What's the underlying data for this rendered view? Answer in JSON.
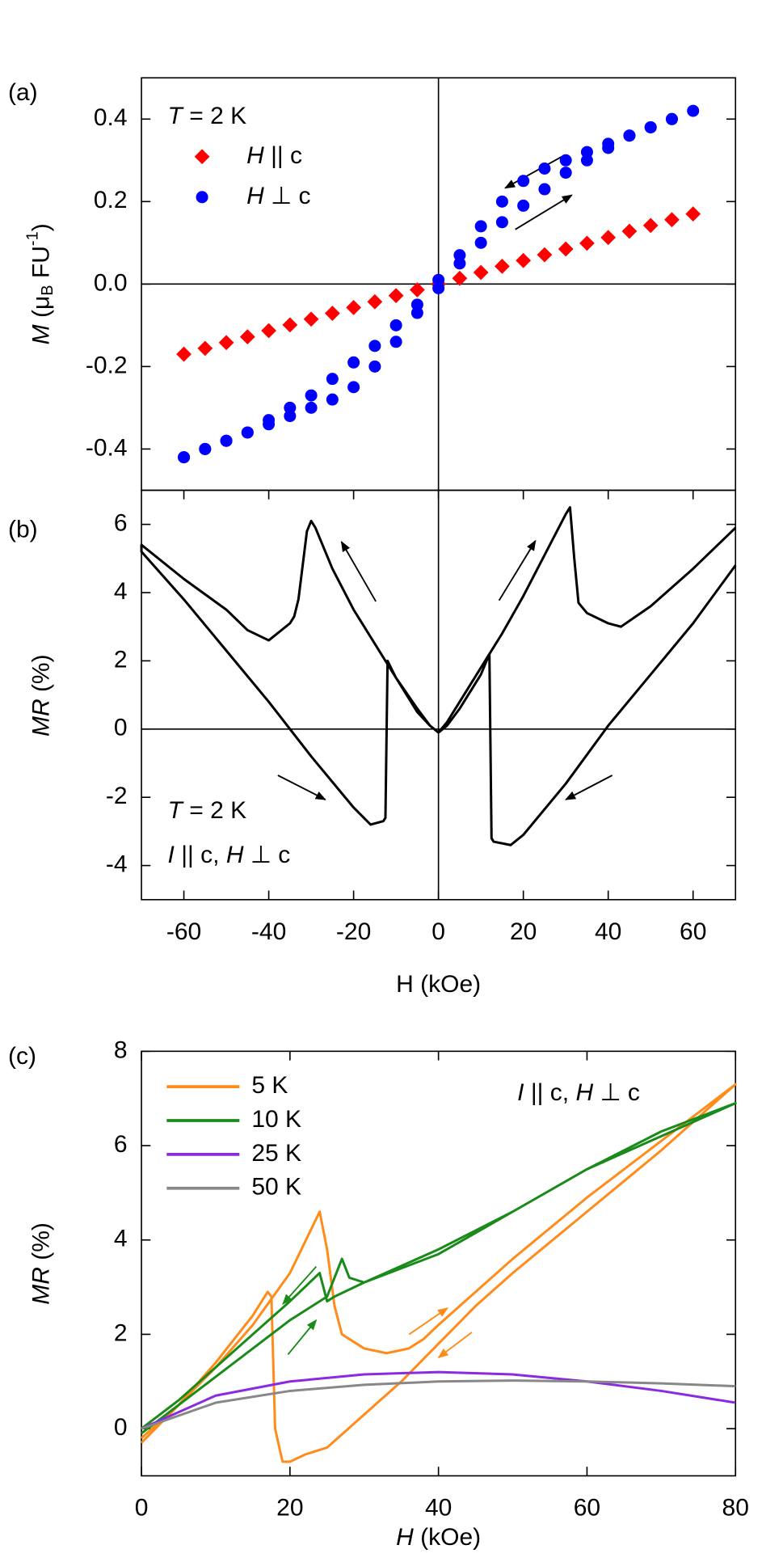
{
  "chart_data": [
    {
      "type": "scatter",
      "label": "(a)",
      "ylabel": [
        "M",
        " (μ",
        "B",
        " FU",
        "-1",
        ")"
      ],
      "xlim": [
        -70,
        70
      ],
      "ylim": [
        -0.5,
        0.5
      ],
      "yticks": [
        -0.4,
        -0.2,
        {
          "value": 0,
          "label": "0.0"
        },
        0.2,
        0.4
      ],
      "zero_lines": true,
      "legend": "upper left",
      "legend_title": [
        "T",
        " = 2 K"
      ],
      "series": [
        {
          "name": [
            "H",
            " || c"
          ],
          "color": "#ff0000",
          "marker": "diamond",
          "x": [
            -60,
            -55,
            -50,
            -45,
            -40,
            -35,
            -30,
            -25,
            -20,
            -15,
            -10,
            -5,
            0,
            5,
            10,
            15,
            20,
            25,
            30,
            35,
            40,
            45,
            50,
            55,
            60
          ],
          "values": [
            -0.17,
            -0.156,
            -0.142,
            -0.128,
            -0.113,
            -0.099,
            -0.085,
            -0.071,
            -0.057,
            -0.043,
            -0.028,
            -0.014,
            0,
            0.014,
            0.028,
            0.043,
            0.057,
            0.071,
            0.085,
            0.099,
            0.113,
            0.128,
            0.142,
            0.156,
            0.17
          ]
        },
        {
          "name": [
            "H",
            " ⊥ c"
          ],
          "color": "#0000ff",
          "marker": "circle",
          "x": [
            -60,
            -55,
            -50,
            -45,
            -40,
            -35,
            -30,
            -25,
            -20,
            -15,
            -10,
            -5,
            0,
            5,
            10,
            15,
            20,
            25,
            30,
            35,
            40,
            45,
            50,
            55,
            60,
            55,
            50,
            45,
            40,
            35,
            30,
            25,
            20,
            15,
            10,
            5,
            0,
            -5,
            -10,
            -15,
            -20,
            -25,
            -30,
            -35,
            -40,
            -45,
            -50,
            -55,
            -60
          ],
          "values": [
            -0.42,
            -0.4,
            -0.38,
            -0.36,
            -0.34,
            -0.32,
            -0.3,
            -0.28,
            -0.25,
            -0.2,
            -0.14,
            -0.07,
            -0.01,
            0.05,
            0.1,
            0.15,
            0.19,
            0.23,
            0.27,
            0.3,
            0.33,
            0.36,
            0.38,
            0.4,
            0.42,
            0.4,
            0.38,
            0.36,
            0.34,
            0.32,
            0.3,
            0.28,
            0.25,
            0.2,
            0.14,
            0.07,
            0.01,
            -0.05,
            -0.1,
            -0.15,
            -0.19,
            -0.23,
            -0.27,
            -0.3,
            -0.33,
            -0.36,
            -0.38,
            -0.4,
            -0.42
          ]
        }
      ]
    },
    {
      "type": "line",
      "label": "(b)",
      "ylabel": [
        "MR",
        " (%)"
      ],
      "xlabel": "H (kOe)",
      "xlim": [
        -70,
        70
      ],
      "ylim": [
        -5,
        7
      ],
      "xticks": [
        -60,
        -40,
        -20,
        0,
        20,
        40,
        60
      ],
      "yticks": [
        -4,
        -2,
        0,
        2,
        4,
        6
      ],
      "zero_lines": true,
      "annotations": [
        [
          "T",
          " = 2 K"
        ],
        [
          "I",
          " || c, ",
          "H",
          " ⊥ c"
        ]
      ],
      "series": [
        {
          "color": "#000000",
          "x": [
            70,
            60,
            50,
            40,
            30,
            20,
            17,
            13,
            12.5,
            12,
            10,
            8,
            5,
            2,
            0,
            -2,
            -5,
            -10,
            -15,
            -20,
            -25,
            -29,
            -30,
            -31,
            -32,
            -33,
            -34,
            -35,
            -40,
            -45,
            -50,
            -60,
            -70,
            -70,
            -60,
            -50,
            -40,
            -35,
            -30,
            -20,
            -16,
            -13,
            -12.5,
            -12,
            -10,
            -8,
            -5,
            -2,
            0,
            2,
            5,
            10,
            15,
            20,
            25,
            30,
            31,
            32,
            33,
            35,
            40,
            43,
            50,
            60,
            70
          ],
          "values": [
            4.8,
            3.1,
            1.6,
            0.1,
            -1.6,
            -3.1,
            -3.4,
            -3.3,
            -3.2,
            2.2,
            1.6,
            1.2,
            0.6,
            0.1,
            -0.1,
            0.1,
            0.6,
            1.5,
            2.5,
            3.5,
            4.7,
            5.9,
            6.1,
            5.8,
            4.8,
            3.8,
            3.3,
            3.1,
            2.6,
            2.9,
            3.5,
            4.4,
            5.4,
            5.2,
            3.8,
            2.3,
            0.8,
            0,
            -0.8,
            -2.3,
            -2.8,
            -2.7,
            -2.6,
            2.0,
            1.5,
            1.1,
            0.5,
            0.1,
            -0.1,
            0.2,
            0.8,
            1.8,
            2.8,
            3.9,
            5.1,
            6.3,
            6.5,
            5.0,
            3.7,
            3.4,
            3.1,
            3.0,
            3.6,
            4.7,
            5.9
          ]
        }
      ]
    },
    {
      "type": "line",
      "label": "(c)",
      "ylabel": [
        "MR",
        " (%)"
      ],
      "xlabel": [
        "H",
        " (kOe)"
      ],
      "xlim": [
        0,
        80
      ],
      "ylim": [
        -1,
        8
      ],
      "xticks": [
        0,
        20,
        40,
        60,
        80
      ],
      "yticks": [
        0,
        2,
        4,
        6,
        8
      ],
      "legend": "upper left",
      "annotations": [
        [
          "I",
          " || c, ",
          "H",
          " ⊥ c"
        ]
      ],
      "series": [
        {
          "name": "5 K",
          "color": "#ff8c1a",
          "x": [
            0,
            5,
            10,
            15,
            20,
            24,
            25,
            26,
            27,
            30,
            33,
            36,
            38,
            40,
            50,
            60,
            70,
            80,
            80,
            70,
            60,
            50,
            45,
            40,
            35,
            30,
            25,
            22,
            20,
            19,
            18,
            17.5,
            17,
            15,
            10,
            5,
            0
          ],
          "values": [
            -0.2,
            0.5,
            1.3,
            2.2,
            3.3,
            4.6,
            3.8,
            2.6,
            2.0,
            1.7,
            1.6,
            1.7,
            1.9,
            2.2,
            3.6,
            4.9,
            6.1,
            7.3,
            7.3,
            5.9,
            4.6,
            3.3,
            2.6,
            1.8,
            1.0,
            0.3,
            -0.4,
            -0.55,
            -0.7,
            -0.7,
            0,
            2.8,
            2.9,
            2.4,
            1.4,
            0.5,
            -0.3
          ]
        },
        {
          "name": "10 K",
          "color": "#1a8a1a",
          "x": [
            0,
            5,
            10,
            15,
            20,
            25,
            27,
            28,
            30,
            40,
            50,
            60,
            70,
            80,
            80,
            70,
            60,
            50,
            40,
            30,
            26,
            25,
            24,
            20,
            15,
            10,
            5,
            0
          ],
          "values": [
            -0.1,
            0.5,
            1.1,
            1.7,
            2.3,
            2.8,
            3.6,
            3.2,
            3.1,
            3.7,
            4.6,
            5.5,
            6.2,
            6.9,
            6.9,
            6.3,
            5.5,
            4.6,
            3.8,
            3.1,
            2.8,
            2.7,
            3.3,
            2.7,
            2.0,
            1.3,
            0.6,
            0
          ]
        },
        {
          "name": "25 K",
          "color": "#8a2be2",
          "x": [
            0,
            10,
            20,
            30,
            40,
            50,
            60,
            70,
            80
          ],
          "values": [
            0,
            0.7,
            1.0,
            1.15,
            1.2,
            1.15,
            1.0,
            0.8,
            0.55
          ]
        },
        {
          "name": "50 K",
          "color": "#888888",
          "x": [
            0,
            10,
            20,
            30,
            40,
            50,
            60,
            70,
            80
          ],
          "values": [
            0,
            0.55,
            0.8,
            0.93,
            1.0,
            1.02,
            1.0,
            0.96,
            0.9
          ]
        }
      ]
    }
  ]
}
